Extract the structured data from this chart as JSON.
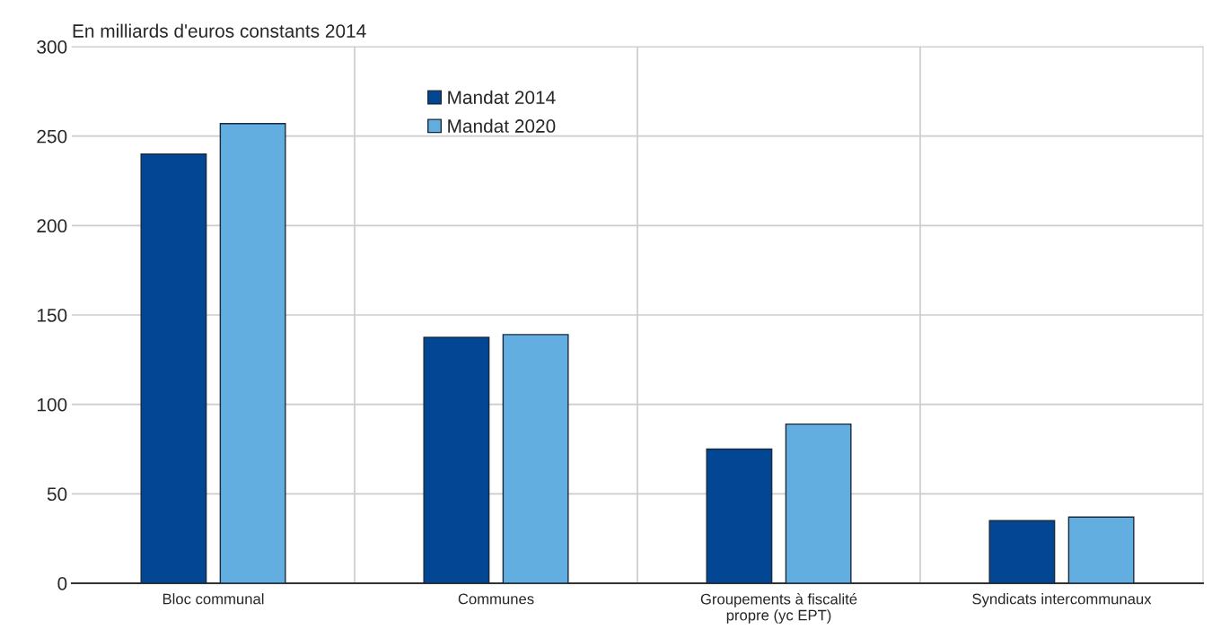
{
  "chart_data": {
    "type": "bar",
    "ylabel": "En milliards d'euros constants 2014",
    "categories": [
      "Bloc communal",
      "Communes",
      "Groupements à fiscalité\npropre (yc EPT)",
      "Syndicats intercommunaux"
    ],
    "series": [
      {
        "name": "Mandat 2014",
        "color": "#034694",
        "values": [
          240,
          137.5,
          75,
          35
        ]
      },
      {
        "name": "Mandat 2020",
        "color": "#62aee0",
        "values": [
          257,
          139,
          89,
          37
        ]
      }
    ],
    "ylim": [
      0,
      300
    ],
    "yticks": [
      0,
      50,
      100,
      150,
      200,
      250,
      300
    ],
    "grid": true,
    "legend": "top left"
  }
}
